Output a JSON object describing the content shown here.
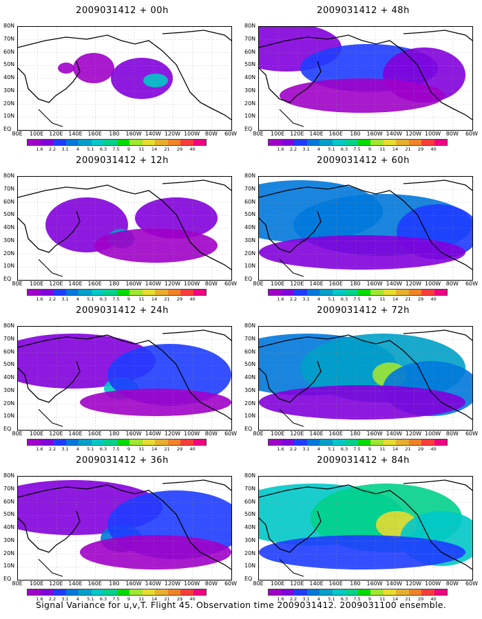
{
  "panels": [
    {
      "title": "2009031412 + 00h"
    },
    {
      "title": "2009031412 + 48h"
    },
    {
      "title": "2009031412 + 12h"
    },
    {
      "title": "2009031412 + 60h"
    },
    {
      "title": "2009031412 + 24h"
    },
    {
      "title": "2009031412 + 72h"
    },
    {
      "title": "2009031412 + 36h"
    },
    {
      "title": "2009031412 + 84h"
    }
  ],
  "lat_labels": [
    "80N",
    "70N",
    "60N",
    "50N",
    "40N",
    "30N",
    "20N",
    "10N",
    "EQ"
  ],
  "lon_labels": [
    "80E",
    "100E",
    "120E",
    "140E",
    "160E",
    "180",
    "160W",
    "140W",
    "120W",
    "100W",
    "80W",
    "60W"
  ],
  "colorbar": {
    "labels": [
      "1.6",
      "2.2",
      "3.1",
      "4",
      "5.1",
      "6.3",
      "7.5",
      "9",
      "11",
      "14",
      "21",
      "29",
      "40"
    ],
    "colors": [
      "#a000c8",
      "#8200dc",
      "#1e3cff",
      "#0078dc",
      "#00a0c8",
      "#00c8c8",
      "#00d28c",
      "#00dc00",
      "#a0e632",
      "#e6dc32",
      "#e6af2d",
      "#f08228",
      "#fa3c3c",
      "#f00082"
    ]
  },
  "footer": "Signal Variance for u,v,T. Flight 45. Observation time 2009031412. 2009031100 ensemble."
}
